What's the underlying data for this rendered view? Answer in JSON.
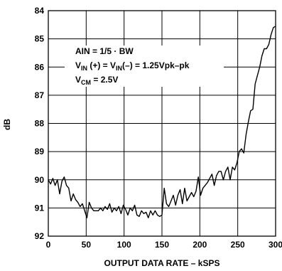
{
  "chart_data": {
    "type": "line",
    "xlabel": "OUTPUT DATA RATE – kSPS",
    "ylabel": "dB",
    "xlim": [
      0,
      300
    ],
    "ylim": [
      92,
      84
    ],
    "y_inverted": true,
    "grid": true,
    "x_ticks": [
      "0",
      "50",
      "100",
      "150",
      "200",
      "250",
      "300"
    ],
    "y_ticks": [
      "84",
      "85",
      "86",
      "87",
      "88",
      "89",
      "90",
      "91",
      "92"
    ],
    "annotations": {
      "line1": "AIN = 1/5 · BW",
      "line2_a": "V",
      "line2_b": "IN",
      "line2_c": " (+) = V",
      "line2_d": "IN",
      "line2_e": "(–) = 1.25Vpk–pk",
      "line3_a": "V",
      "line3_b": "CM",
      "line3_c": " = 2.5V"
    },
    "series": [
      {
        "x": [
          0,
          3,
          6,
          9,
          12,
          15,
          18,
          21,
          24,
          27,
          30,
          33,
          36,
          39,
          42,
          45,
          48,
          51,
          54,
          57,
          60,
          63,
          66,
          69,
          72,
          75,
          78,
          81,
          84,
          87,
          90,
          93,
          96,
          99,
          102,
          105,
          108,
          111,
          114,
          117,
          120,
          123,
          126,
          129,
          132,
          135,
          138,
          141,
          144,
          147,
          150,
          153,
          156,
          159,
          162,
          165,
          168,
          171,
          174,
          177,
          180,
          183,
          186,
          189,
          192,
          195,
          198,
          201,
          204,
          207,
          210,
          213,
          216,
          219,
          222,
          225,
          228,
          231,
          234,
          237,
          240,
          243,
          246,
          249,
          252,
          255,
          258,
          261,
          264,
          267,
          270,
          273,
          276,
          279,
          282,
          285,
          288,
          291,
          294,
          297,
          300
        ],
        "y": [
          90.0,
          90.15,
          89.95,
          90.2,
          90.0,
          90.5,
          90.05,
          89.9,
          90.2,
          90.3,
          90.75,
          90.5,
          90.7,
          90.8,
          90.95,
          90.85,
          91.1,
          91.35,
          90.8,
          91.0,
          91.1,
          91.1,
          91.1,
          91.0,
          91.1,
          90.95,
          91.05,
          90.85,
          91.15,
          91.0,
          91.1,
          90.95,
          91.2,
          90.9,
          91.05,
          91.25,
          91.0,
          91.1,
          90.9,
          91.25,
          91.3,
          91.1,
          91.2,
          91.15,
          91.35,
          91.1,
          91.25,
          91.1,
          91.25,
          91.3,
          91.25,
          90.3,
          90.85,
          90.95,
          90.75,
          90.55,
          90.9,
          90.55,
          90.35,
          90.85,
          90.3,
          90.75,
          90.6,
          90.45,
          90.6,
          90.4,
          89.9,
          90.55,
          90.3,
          90.2,
          90.1,
          89.95,
          89.8,
          90.2,
          89.85,
          89.7,
          89.7,
          90.0,
          89.7,
          89.55,
          90.0,
          89.55,
          89.65,
          89.4,
          89.0,
          88.9,
          89.05,
          88.4,
          87.95,
          87.55,
          87.5,
          86.6,
          86.3,
          86.0,
          85.6,
          85.35,
          85.35,
          85.2,
          84.85,
          84.6,
          84.55
        ]
      }
    ]
  }
}
